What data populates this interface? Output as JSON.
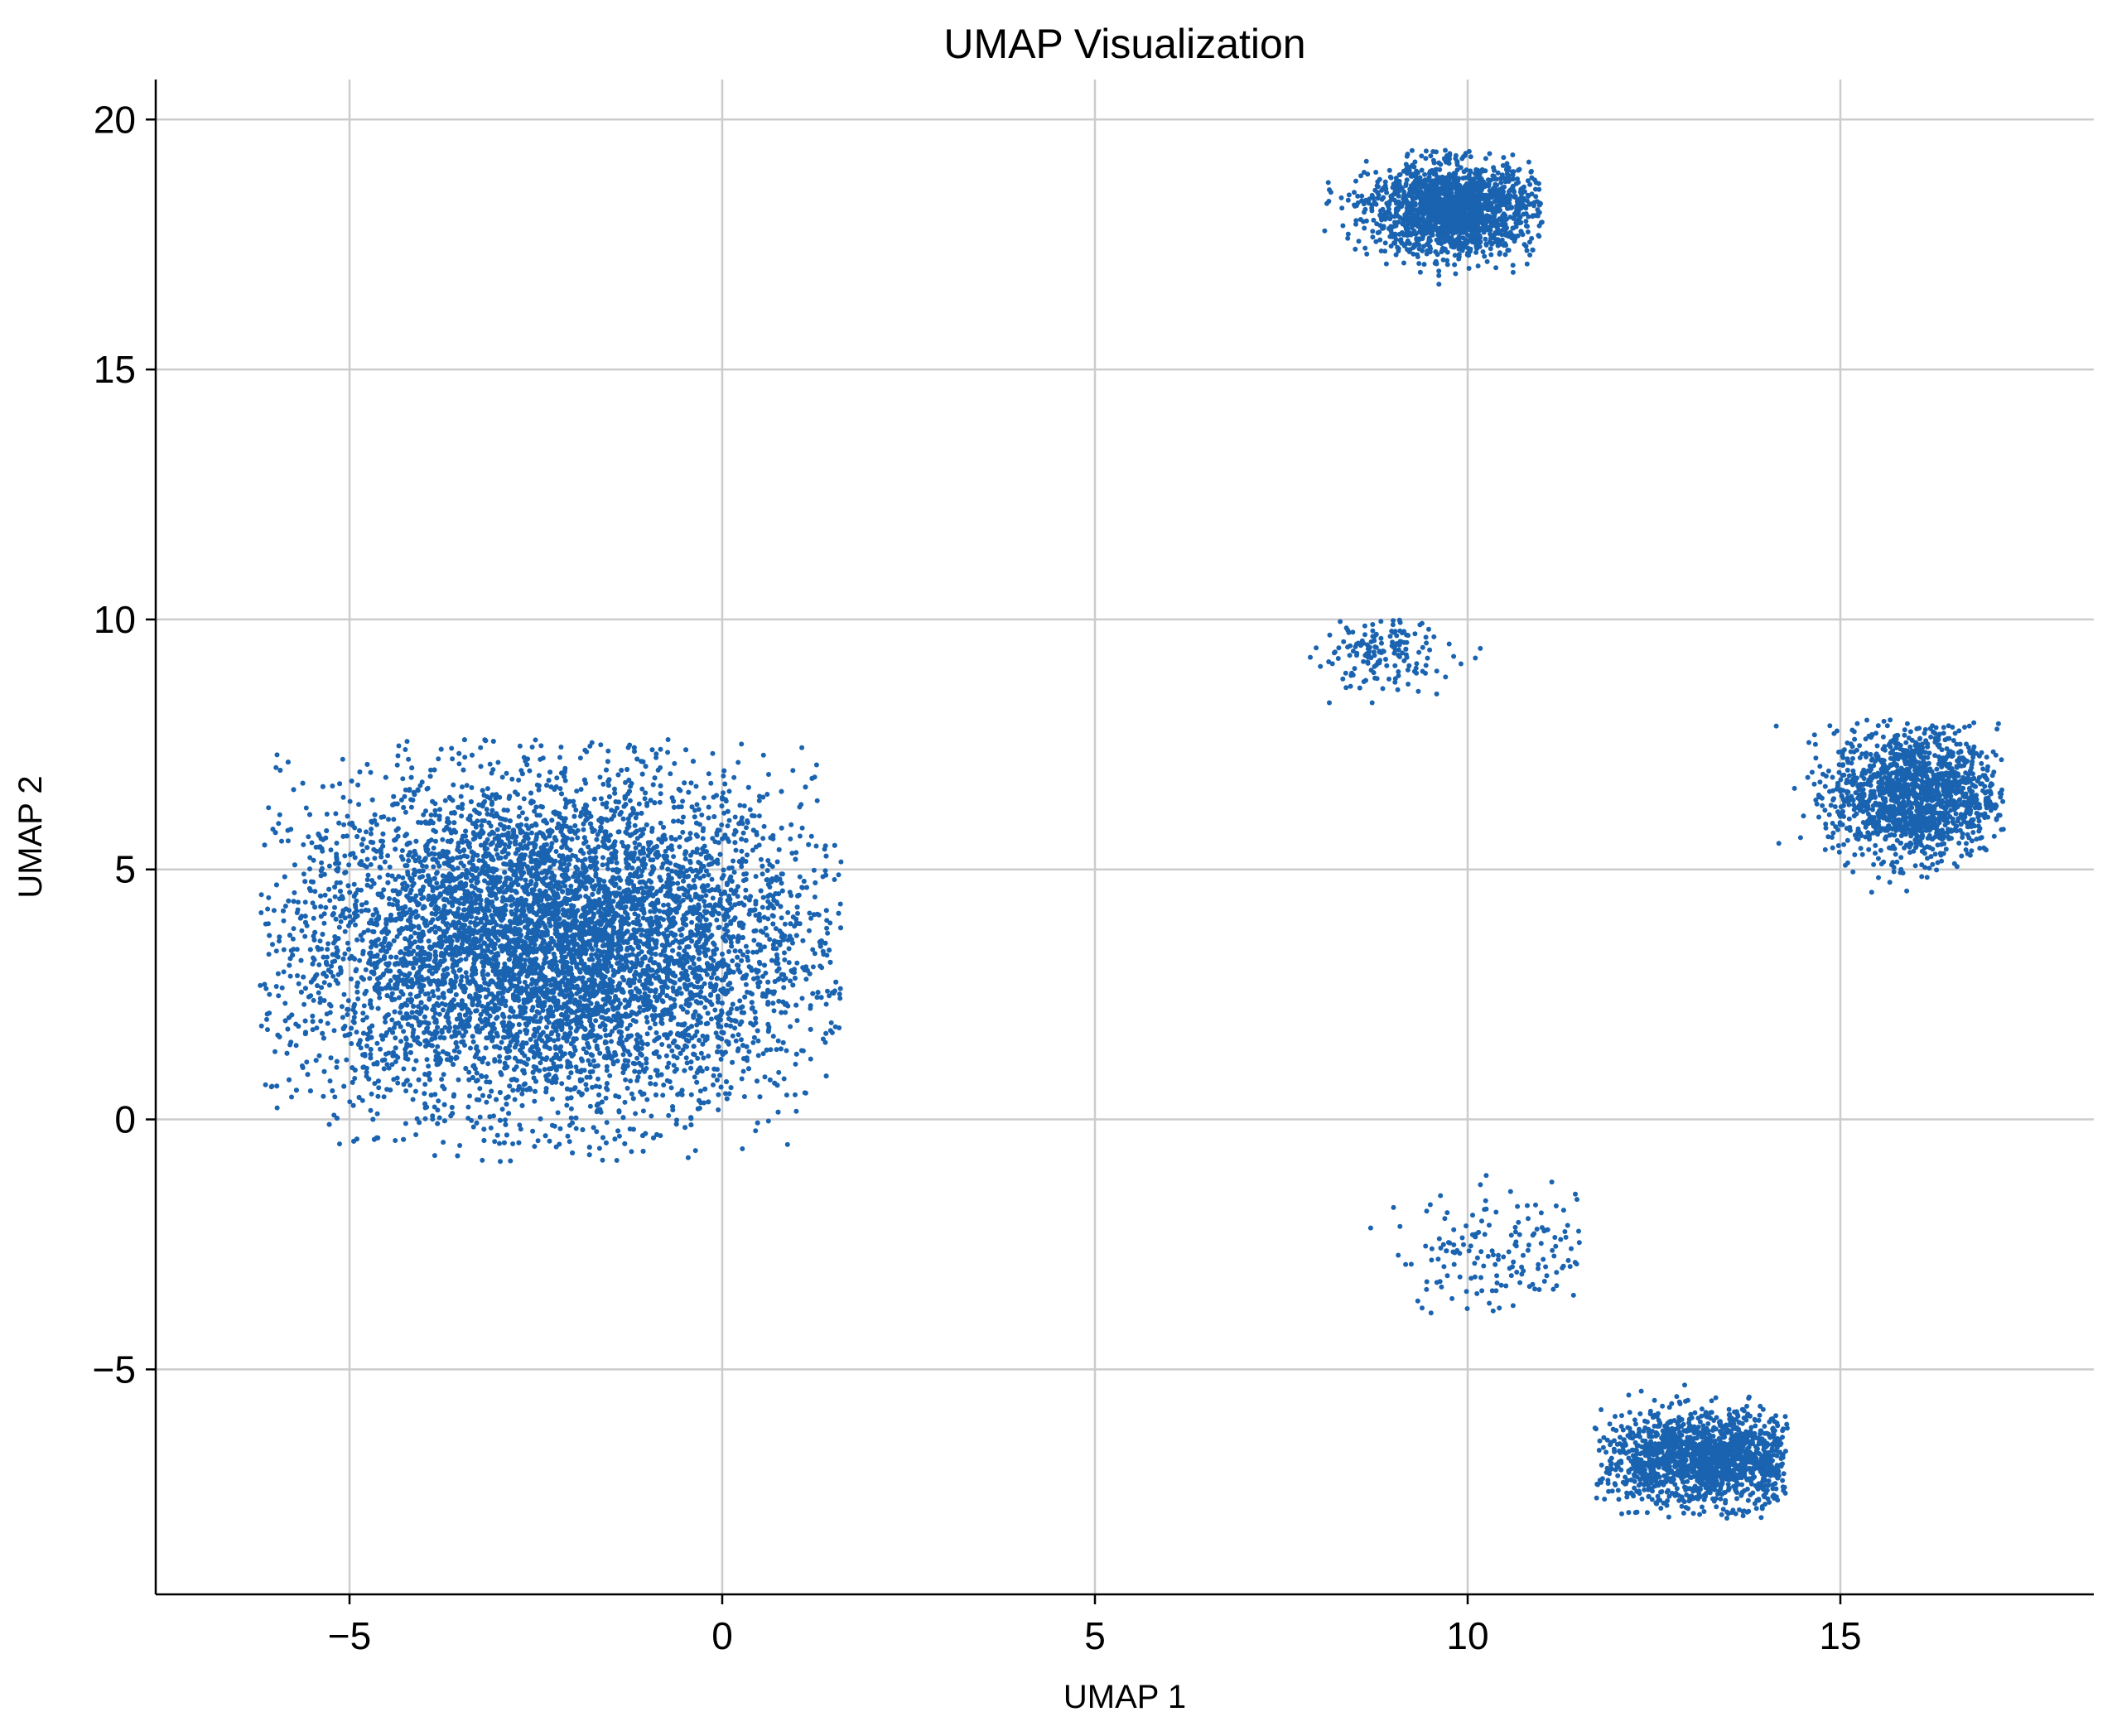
{
  "chart_data": {
    "type": "scatter",
    "title": "UMAP Visualization",
    "xlabel": "UMAP 1",
    "ylabel": "UMAP 2",
    "xlim": [
      -7.6,
      18.4
    ],
    "ylim": [
      -9.5,
      20.8
    ],
    "xticks": [
      -5,
      0,
      5,
      10,
      15
    ],
    "yticks": [
      -5,
      0,
      5,
      10,
      15,
      20
    ],
    "xtick_labels": [
      "−5",
      "0",
      "5",
      "10",
      "15"
    ],
    "ytick_labels": [
      "−5",
      "0",
      "5",
      "10",
      "15",
      "20"
    ],
    "grid": true,
    "point_color": "#1a63b0",
    "clusters": [
      {
        "center": [
          -2.3,
          3.5
        ],
        "spread": [
          1.75,
          1.65
        ],
        "count": 9000,
        "range_x": [
          -6.2,
          1.6
        ],
        "range_y": [
          -0.9,
          7.6
        ]
      },
      {
        "center": [
          9.8,
          18.2
        ],
        "spread": [
          0.55,
          0.45
        ],
        "count": 1800,
        "range_x": [
          7.8,
          11.0
        ],
        "range_y": [
          16.7,
          19.4
        ]
      },
      {
        "center": [
          8.8,
          9.3
        ],
        "spread": [
          0.5,
          0.35
        ],
        "count": 160,
        "range_x": [
          7.8,
          10.5
        ],
        "range_y": [
          8.2,
          10.1
        ]
      },
      {
        "center": [
          16.0,
          6.5
        ],
        "spread": [
          0.55,
          0.65
        ],
        "count": 1500,
        "range_x": [
          13.9,
          17.2
        ],
        "range_y": [
          4.4,
          8.0
        ]
      },
      {
        "center": [
          10.6,
          -2.6
        ],
        "spread": [
          0.8,
          0.6
        ],
        "count": 160,
        "range_x": [
          8.3,
          11.5
        ],
        "range_y": [
          -4.3,
          -0.3
        ]
      },
      {
        "center": [
          13.2,
          -6.8
        ],
        "spread": [
          0.7,
          0.45
        ],
        "count": 1600,
        "range_x": [
          11.7,
          14.3
        ],
        "range_y": [
          -8.0,
          -4.7
        ]
      }
    ]
  }
}
